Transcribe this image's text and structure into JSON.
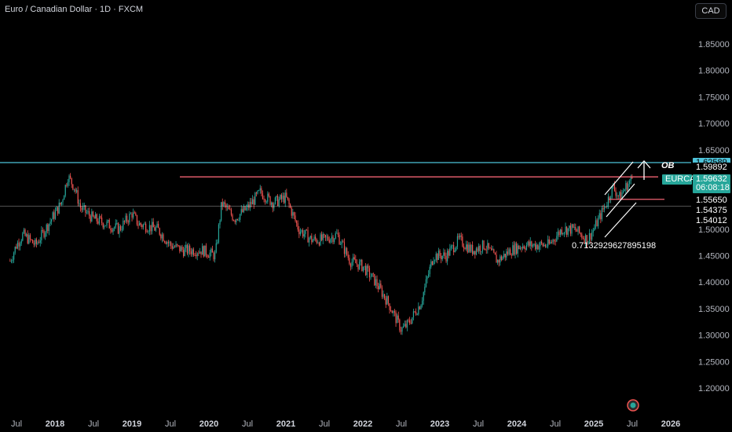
{
  "header": {
    "title": "Euro / Canadian Dollar · 1D · FXCM",
    "currency_button": "CAD"
  },
  "chart_data": {
    "type": "candlestick",
    "title": "Euro / Canadian Dollar · 1D · FXCM",
    "symbol": "EURCAD",
    "ylim": [
      1.15,
      1.89
    ],
    "price_ticks": [
      "1.85000",
      "1.80000",
      "1.75000",
      "1.70000",
      "1.65000",
      "1.50000",
      "1.45000",
      "1.40000",
      "1.35000",
      "1.30000",
      "1.25000",
      "1.20000"
    ],
    "time_ticks": [
      {
        "label": "Jul",
        "year": false
      },
      {
        "label": "2018",
        "year": true
      },
      {
        "label": "Jul",
        "year": false
      },
      {
        "label": "2019",
        "year": true
      },
      {
        "label": "Jul",
        "year": false
      },
      {
        "label": "2020",
        "year": true
      },
      {
        "label": "Jul",
        "year": false
      },
      {
        "label": "2021",
        "year": true
      },
      {
        "label": "Jul",
        "year": false
      },
      {
        "label": "2022",
        "year": true
      },
      {
        "label": "Jul",
        "year": false
      },
      {
        "label": "2023",
        "year": true
      },
      {
        "label": "Jul",
        "year": false
      },
      {
        "label": "2024",
        "year": true
      },
      {
        "label": "Jul",
        "year": false
      },
      {
        "label": "2025",
        "year": true
      },
      {
        "label": "Jul",
        "year": false
      },
      {
        "label": "2026",
        "year": true
      }
    ],
    "price_path": [
      [
        "2017-06",
        1.44
      ],
      [
        "2017-07",
        1.47
      ],
      [
        "2017-08",
        1.49
      ],
      [
        "2017-10",
        1.47
      ],
      [
        "2017-12",
        1.51
      ],
      [
        "2018-02",
        1.55
      ],
      [
        "2018-03",
        1.6
      ],
      [
        "2018-04",
        1.58
      ],
      [
        "2018-05",
        1.54
      ],
      [
        "2018-07",
        1.52
      ],
      [
        "2018-09",
        1.51
      ],
      [
        "2018-11",
        1.5
      ],
      [
        "2019-01",
        1.53
      ],
      [
        "2019-02",
        1.51
      ],
      [
        "2019-05",
        1.5
      ],
      [
        "2019-07",
        1.47
      ],
      [
        "2019-09",
        1.46
      ],
      [
        "2019-12",
        1.46
      ],
      [
        "2020-02",
        1.45
      ],
      [
        "2020-03",
        1.55
      ],
      [
        "2020-05",
        1.52
      ],
      [
        "2020-07",
        1.54
      ],
      [
        "2020-09",
        1.57
      ],
      [
        "2020-11",
        1.55
      ],
      [
        "2021-01",
        1.56
      ],
      [
        "2021-03",
        1.5
      ],
      [
        "2021-05",
        1.48
      ],
      [
        "2021-07",
        1.48
      ],
      [
        "2021-09",
        1.49
      ],
      [
        "2021-11",
        1.44
      ],
      [
        "2022-01",
        1.43
      ],
      [
        "2022-03",
        1.4
      ],
      [
        "2022-05",
        1.36
      ],
      [
        "2022-07",
        1.31
      ],
      [
        "2022-08",
        1.32
      ],
      [
        "2022-10",
        1.36
      ],
      [
        "2022-12",
        1.45
      ],
      [
        "2023-02",
        1.45
      ],
      [
        "2023-04",
        1.48
      ],
      [
        "2023-06",
        1.46
      ],
      [
        "2023-08",
        1.47
      ],
      [
        "2023-10",
        1.44
      ],
      [
        "2023-12",
        1.46
      ],
      [
        "2024-02",
        1.47
      ],
      [
        "2024-04",
        1.47
      ],
      [
        "2024-06",
        1.47
      ],
      [
        "2024-08",
        1.5
      ],
      [
        "2024-10",
        1.5
      ],
      [
        "2024-12",
        1.48
      ],
      [
        "2025-01",
        1.5
      ],
      [
        "2025-03",
        1.55
      ],
      [
        "2025-04",
        1.58
      ],
      [
        "2025-05",
        1.56
      ],
      [
        "2025-06",
        1.58
      ],
      [
        "2025-07",
        1.5963
      ]
    ],
    "horizontal_lines": [
      {
        "name": "resistance-cyan",
        "price": 1.62589,
        "color": "#4ec3da",
        "label": "1.62589"
      },
      {
        "name": "resistance-red",
        "price": 1.59892,
        "color": "#f06272",
        "label": "1.59892"
      },
      {
        "name": "support-red",
        "price": 1.5565,
        "color": "#f06272",
        "label": "1.55650"
      },
      {
        "name": "black-line",
        "price": 1.54375,
        "color": "#ffffff",
        "label": "1.54375"
      }
    ],
    "current_price": {
      "symbol": "EURCAD",
      "value": "1.59632",
      "countdown": "06:08:18",
      "color": "#26a69a"
    },
    "extra_price_labels": [
      "1.54012"
    ],
    "annotations": {
      "ob_label": "OB",
      "fib_value": "0.7132929627895198"
    },
    "colors": {
      "up": "#26a69a",
      "down": "#ef5350",
      "background": "#000000"
    }
  }
}
